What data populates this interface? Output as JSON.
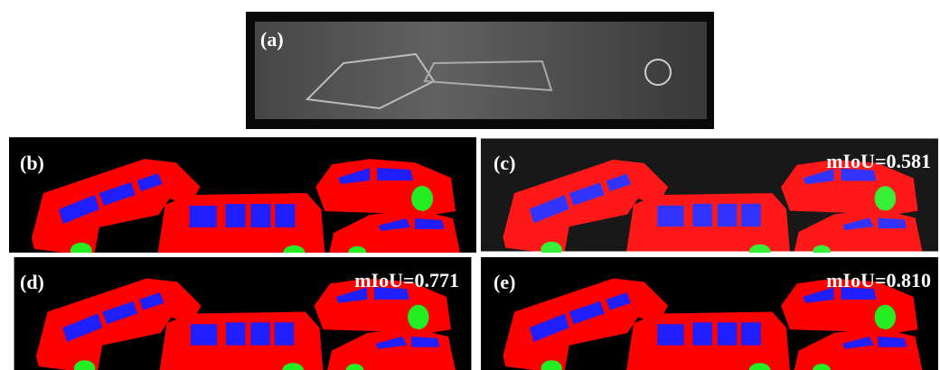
{
  "panels": [
    {
      "label": "(a)"
    },
    {
      "label": "(b)"
    },
    {
      "label": "(c)",
      "metric": "mIoU=0.581"
    },
    {
      "label": "(d)",
      "metric": "mIoU=0.771"
    },
    {
      "label": "(e)",
      "metric": "mIoU=0.810"
    }
  ]
}
